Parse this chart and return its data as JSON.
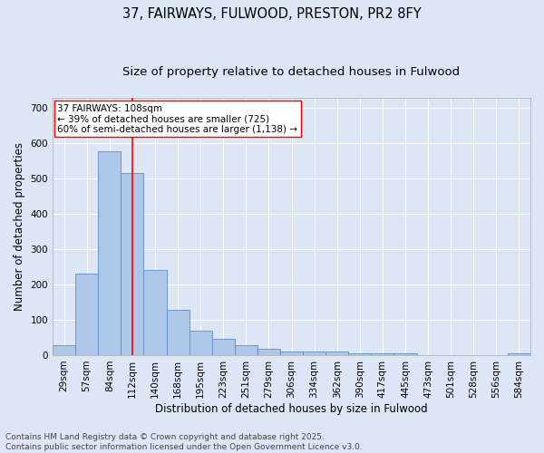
{
  "title_line1": "37, FAIRWAYS, FULWOOD, PRESTON, PR2 8FY",
  "title_line2": "Size of property relative to detached houses in Fulwood",
  "xlabel": "Distribution of detached houses by size in Fulwood",
  "ylabel": "Number of detached properties",
  "categories": [
    "29sqm",
    "57sqm",
    "84sqm",
    "112sqm",
    "140sqm",
    "168sqm",
    "195sqm",
    "223sqm",
    "251sqm",
    "279sqm",
    "306sqm",
    "334sqm",
    "362sqm",
    "390sqm",
    "417sqm",
    "445sqm",
    "473sqm",
    "501sqm",
    "528sqm",
    "556sqm",
    "584sqm"
  ],
  "values": [
    27,
    232,
    578,
    515,
    240,
    127,
    68,
    45,
    27,
    18,
    10,
    10,
    10,
    5,
    5,
    5,
    0,
    0,
    0,
    0,
    5
  ],
  "bar_color": "#aec6e8",
  "bar_edge_color": "#5b8dc8",
  "vline_x": 3,
  "vline_color": "red",
  "annotation_text": "37 FAIRWAYS: 108sqm\n← 39% of detached houses are smaller (725)\n60% of semi-detached houses are larger (1,138) →",
  "annotation_box_color": "white",
  "annotation_box_edge_color": "red",
  "ylim": [
    0,
    730
  ],
  "yticks": [
    0,
    100,
    200,
    300,
    400,
    500,
    600,
    700
  ],
  "plot_bg_color": "#dce6f5",
  "fig_bg_color": "#dce6f5",
  "footer_text": "Contains HM Land Registry data © Crown copyright and database right 2025.\nContains public sector information licensed under the Open Government Licence v3.0.",
  "title_fontsize": 10.5,
  "subtitle_fontsize": 9.5,
  "axis_label_fontsize": 8.5,
  "tick_fontsize": 7.5,
  "annotation_fontsize": 7.5,
  "footer_fontsize": 6.5
}
